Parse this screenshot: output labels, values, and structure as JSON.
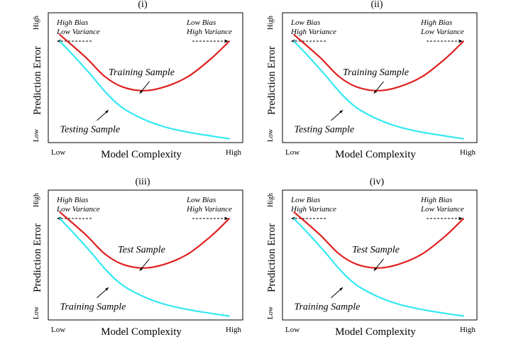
{
  "colors": {
    "upper_curve": "#e02020",
    "lower_curve": "#33e8f2",
    "frame": "#000000",
    "text": "#000000"
  },
  "chart_data": [
    {
      "type": "line",
      "title": "(i)",
      "xlabel": "Model Complexity",
      "ylabel": "Prediction Error",
      "x_tick_labels": {
        "low": "Low",
        "high": "High"
      },
      "y_tick_labels": {
        "low": "Low",
        "high": "High"
      },
      "xlim": [
        0,
        1
      ],
      "ylim": [
        0,
        1
      ],
      "grid": false,
      "corner_notes": {
        "left": [
          "High Bias",
          "Low Variance"
        ],
        "right": [
          "Low Bias",
          "High Variance"
        ]
      },
      "series": [
        {
          "name": "Training Sample",
          "color": "#e02020",
          "x": [
            0.06,
            0.19,
            0.29,
            0.38,
            0.49,
            0.6,
            0.72,
            0.84,
            0.93
          ],
          "y": [
            0.83,
            0.66,
            0.51,
            0.43,
            0.4,
            0.43,
            0.51,
            0.65,
            0.78
          ]
        },
        {
          "name": "Testing Sample",
          "color": "#33e8f2",
          "x": [
            0.06,
            0.13,
            0.22,
            0.3,
            0.38,
            0.49,
            0.6,
            0.72,
            0.84,
            0.93
          ],
          "y": [
            0.78,
            0.67,
            0.52,
            0.38,
            0.27,
            0.18,
            0.12,
            0.08,
            0.05,
            0.03
          ]
        }
      ],
      "annotations": [
        {
          "text": "Training Sample"
        },
        {
          "text": "Testing Sample"
        }
      ]
    },
    {
      "type": "line",
      "title": "(ii)",
      "xlabel": "Model Complexity",
      "ylabel": "Prediction Error",
      "x_tick_labels": {
        "low": "Low",
        "high": "High"
      },
      "y_tick_labels": {
        "low": "Low",
        "high": "High"
      },
      "xlim": [
        0,
        1
      ],
      "ylim": [
        0,
        1
      ],
      "grid": false,
      "corner_notes": {
        "left": [
          "Low Bias",
          "High Variance"
        ],
        "right": [
          "High Bias",
          "Low Variance"
        ]
      },
      "series": [
        {
          "name": "Training Sample",
          "color": "#e02020",
          "x": [
            0.06,
            0.19,
            0.29,
            0.38,
            0.49,
            0.6,
            0.72,
            0.84,
            0.93
          ],
          "y": [
            0.83,
            0.66,
            0.51,
            0.43,
            0.4,
            0.43,
            0.51,
            0.65,
            0.78
          ]
        },
        {
          "name": "Testing Sample",
          "color": "#33e8f2",
          "x": [
            0.06,
            0.13,
            0.22,
            0.3,
            0.38,
            0.49,
            0.6,
            0.72,
            0.84,
            0.93
          ],
          "y": [
            0.78,
            0.67,
            0.52,
            0.38,
            0.27,
            0.18,
            0.12,
            0.08,
            0.05,
            0.03
          ]
        }
      ],
      "annotations": [
        {
          "text": "Training Sample"
        },
        {
          "text": "Testing Sample"
        }
      ]
    },
    {
      "type": "line",
      "title": "(iii)",
      "xlabel": "Model Complexity",
      "ylabel": "Prediction Error",
      "x_tick_labels": {
        "low": "Low",
        "high": "High"
      },
      "y_tick_labels": {
        "low": "Low",
        "high": "High"
      },
      "xlim": [
        0,
        1
      ],
      "ylim": [
        0,
        1
      ],
      "grid": false,
      "corner_notes": {
        "left": [
          "High Bias",
          "Low Variance"
        ],
        "right": [
          "Low Bias",
          "High Variance"
        ]
      },
      "series": [
        {
          "name": "Test Sample",
          "color": "#e02020",
          "x": [
            0.06,
            0.19,
            0.29,
            0.38,
            0.49,
            0.6,
            0.72,
            0.84,
            0.93
          ],
          "y": [
            0.83,
            0.66,
            0.51,
            0.43,
            0.4,
            0.43,
            0.51,
            0.65,
            0.78
          ]
        },
        {
          "name": "Training Sample",
          "color": "#33e8f2",
          "x": [
            0.06,
            0.13,
            0.22,
            0.3,
            0.38,
            0.49,
            0.6,
            0.72,
            0.84,
            0.93
          ],
          "y": [
            0.78,
            0.67,
            0.52,
            0.38,
            0.27,
            0.18,
            0.12,
            0.08,
            0.05,
            0.03
          ]
        }
      ],
      "annotations": [
        {
          "text": "Test Sample"
        },
        {
          "text": "Training Sample"
        }
      ]
    },
    {
      "type": "line",
      "title": "(iv)",
      "xlabel": "Model Complexity",
      "ylabel": "Prediction Error",
      "x_tick_labels": {
        "low": "Low",
        "high": "High"
      },
      "y_tick_labels": {
        "low": "Low",
        "high": "High"
      },
      "xlim": [
        0,
        1
      ],
      "ylim": [
        0,
        1
      ],
      "grid": false,
      "corner_notes": {
        "left": [
          "Low Bias",
          "High Variance"
        ],
        "right": [
          "High Bias",
          "Low Variance"
        ]
      },
      "series": [
        {
          "name": "Test Sample",
          "color": "#e02020",
          "x": [
            0.06,
            0.19,
            0.29,
            0.38,
            0.49,
            0.6,
            0.72,
            0.84,
            0.93
          ],
          "y": [
            0.83,
            0.66,
            0.51,
            0.43,
            0.4,
            0.43,
            0.51,
            0.65,
            0.78
          ]
        },
        {
          "name": "Training Sample",
          "color": "#33e8f2",
          "x": [
            0.06,
            0.13,
            0.22,
            0.3,
            0.38,
            0.49,
            0.6,
            0.72,
            0.84,
            0.93
          ],
          "y": [
            0.78,
            0.67,
            0.52,
            0.38,
            0.27,
            0.18,
            0.12,
            0.08,
            0.05,
            0.03
          ]
        }
      ],
      "annotations": [
        {
          "text": "Test Sample"
        },
        {
          "text": "Training Sample"
        }
      ]
    }
  ]
}
